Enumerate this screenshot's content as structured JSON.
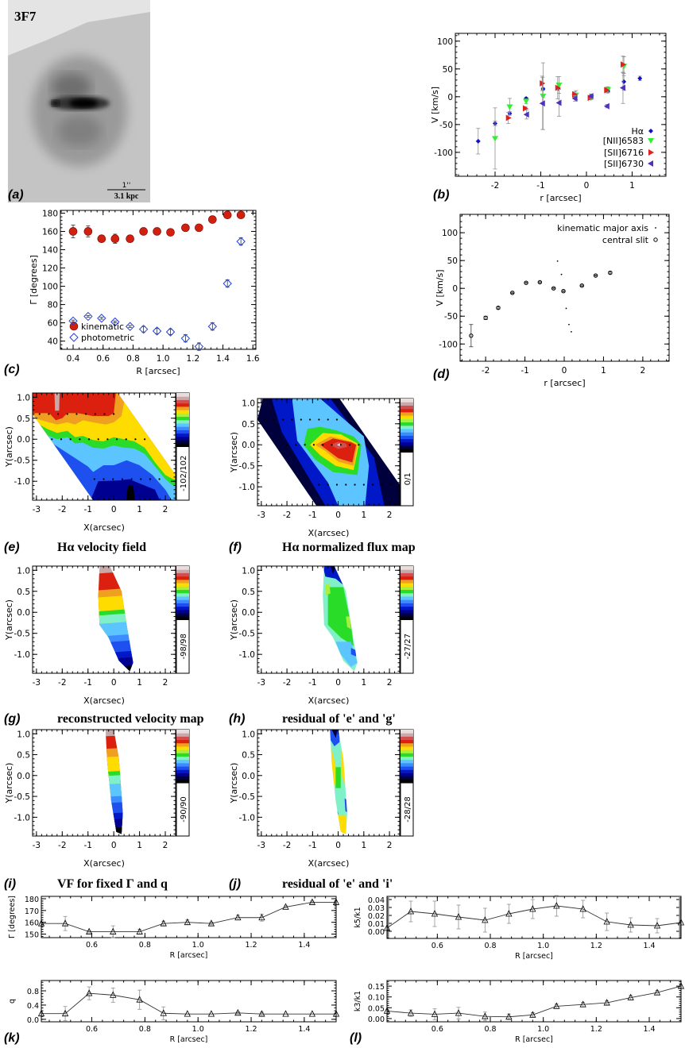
{
  "panel_letters": {
    "a": "(a)",
    "b": "(b)",
    "c": "(c)",
    "d": "(d)",
    "e": "(e)",
    "f": "(f)",
    "g": "(g)",
    "h": "(h)",
    "i": "(i)",
    "j": "(j)",
    "k": "(k)",
    "l": "(l)"
  },
  "panel_a": {
    "object_id": "3F7",
    "scale_top": "1''",
    "scale_bottom": "3.1 kpc"
  },
  "captions": {
    "e": "Hα velocity field",
    "f": "Hα normalized flux map",
    "g": "reconstructed velocity map",
    "h": "residual of 'e' and 'g'",
    "i": "VF for fixed Γ and q",
    "j": "residual of 'e' and 'i'"
  },
  "colormap": [
    "#000000",
    "#00003c",
    "#000090",
    "#0018c8",
    "#1e50f0",
    "#3c8cff",
    "#5cc4ff",
    "#80f0c8",
    "#28dc28",
    "#a8f040",
    "#ffdc00",
    "#f0a020",
    "#dc2010",
    "#d05050",
    "#c8a8a8",
    "#e8dcdc"
  ],
  "chart_data": [
    {
      "panel": "b",
      "type": "scatter",
      "xlabel": "r [arcsec]",
      "ylabel": "V [km/s]",
      "xlim": [
        -2.87,
        1.74
      ],
      "ylim": [
        -143,
        114
      ],
      "xticks": [
        "-2",
        "-1",
        "0",
        "1"
      ],
      "yticks": [
        "100",
        "50",
        "0",
        "-50",
        "-100"
      ],
      "legend": "bottom-right",
      "series": [
        {
          "name": "Hα",
          "marker": "diamond",
          "color": "#1010c8",
          "points": [
            [
              -2.37,
              -80,
              23
            ],
            [
              -2.0,
              -48,
              4
            ],
            [
              -1.68,
              -30,
              3
            ],
            [
              -1.32,
              -3,
              2
            ],
            [
              -0.95,
              14,
              2
            ],
            [
              -0.62,
              15,
              2
            ],
            [
              -0.27,
              4,
              2
            ],
            [
              0.1,
              1,
              3
            ],
            [
              0.47,
              10,
              3
            ],
            [
              0.82,
              27,
              15
            ],
            [
              1.17,
              33,
              4
            ]
          ]
        },
        {
          "name": "[NII]6583",
          "marker": "triangle-down",
          "color": "#30f030",
          "points": [
            [
              -2.0,
              -75,
              55
            ],
            [
              -1.68,
              -18,
              15
            ],
            [
              -1.32,
              -8,
              4
            ],
            [
              -0.95,
              1,
              60
            ],
            [
              -0.6,
              21,
              15
            ],
            [
              -0.23,
              3,
              8
            ],
            [
              0.1,
              -2,
              3
            ],
            [
              0.47,
              13,
              5
            ],
            [
              0.82,
              55,
              17
            ]
          ]
        },
        {
          "name": "[SII]6716",
          "marker": "triangle-right",
          "color": "#e02020",
          "points": [
            [
              -1.71,
              -38,
              10
            ],
            [
              -1.34,
              -21,
              3
            ],
            [
              -0.97,
              24,
              13
            ],
            [
              -0.63,
              16,
              20
            ],
            [
              -0.26,
              4,
              5
            ],
            [
              0.08,
              -2,
              3
            ],
            [
              0.44,
              12,
              5
            ],
            [
              0.8,
              58,
              15
            ]
          ]
        },
        {
          "name": "[SII]6730",
          "marker": "triangle-left",
          "color": "#5030c0",
          "points": [
            [
              -1.31,
              -32,
              8
            ],
            [
              -0.96,
              -12,
              47
            ],
            [
              -0.6,
              -11,
              24
            ],
            [
              -0.25,
              -3,
              5
            ],
            [
              0.1,
              1,
              4
            ],
            [
              0.45,
              -17,
              3
            ],
            [
              0.8,
              16,
              28
            ]
          ]
        }
      ]
    },
    {
      "panel": "c",
      "type": "scatter",
      "xlabel": "R [arcsec]",
      "ylabel": "Γ [degrees]",
      "xlim": [
        0.315,
        1.62
      ],
      "ylim": [
        31,
        183
      ],
      "xticks": [
        "0.4",
        "0.6",
        "0.8",
        "1.0",
        "1.2",
        "1.4",
        "1.6"
      ],
      "yticks": [
        "180",
        "160",
        "140",
        "120",
        "100",
        "80",
        "60",
        "40"
      ],
      "legend": "bottom-left",
      "series": [
        {
          "name": "kinematic",
          "marker": "circle",
          "color": "#d02010",
          "points": [
            [
              0.4,
              160,
              7
            ],
            [
              0.5,
              160,
              6
            ],
            [
              0.59,
              152,
              1
            ],
            [
              0.68,
              152,
              5
            ],
            [
              0.78,
              152,
              2
            ],
            [
              0.87,
              160,
              2
            ],
            [
              0.96,
              160,
              2
            ],
            [
              1.05,
              159,
              1
            ],
            [
              1.15,
              164,
              2
            ],
            [
              1.24,
              164,
              3
            ],
            [
              1.33,
              173,
              2
            ],
            [
              1.43,
              178,
              1
            ],
            [
              1.52,
              178,
              1
            ]
          ]
        },
        {
          "name": "photometric",
          "marker": "open-diamond",
          "color": "#2040e0",
          "points": [
            [
              0.4,
              62,
              1
            ],
            [
              0.5,
              67,
              1
            ],
            [
              0.59,
              65,
              1
            ],
            [
              0.68,
              61,
              1
            ],
            [
              0.78,
              56,
              1
            ],
            [
              0.87,
              53,
              3
            ],
            [
              0.96,
              51,
              3
            ],
            [
              1.05,
              50,
              3
            ],
            [
              1.15,
              43,
              4
            ],
            [
              1.24,
              34,
              4
            ],
            [
              1.33,
              56,
              4
            ],
            [
              1.43,
              103,
              4
            ],
            [
              1.52,
              149,
              4
            ]
          ]
        }
      ]
    },
    {
      "panel": "d",
      "type": "scatter",
      "xlabel": "r [arcsec]",
      "ylabel": "V [km/s]",
      "xlim": [
        -2.65,
        2.67
      ],
      "ylim": [
        -131,
        133
      ],
      "xticks": [
        "-2",
        "-1",
        "0",
        "1",
        "2"
      ],
      "yticks": [
        "100",
        "50",
        "0",
        "-50",
        "-100"
      ],
      "legend": "top-right",
      "series": [
        {
          "name": "kinematic major axis",
          "marker": "dot",
          "color": "#000000",
          "points": [
            [
              -0.17,
              49,
              0
            ],
            [
              -0.07,
              25,
              0
            ],
            [
              0.05,
              -36,
              0
            ],
            [
              0.12,
              -65,
              0
            ],
            [
              0.18,
              -78,
              0
            ]
          ]
        },
        {
          "name": "central slit",
          "marker": "open-circle",
          "color": "#000000",
          "points": [
            [
              -2.37,
              -85,
              20
            ],
            [
              -2.0,
              -53,
              3
            ],
            [
              -1.68,
              -35,
              2
            ],
            [
              -1.32,
              -8,
              1
            ],
            [
              -0.97,
              10,
              1
            ],
            [
              -0.62,
              11,
              1
            ],
            [
              -0.27,
              0,
              1
            ],
            [
              -0.02,
              -5,
              1
            ],
            [
              0.45,
              5,
              1
            ],
            [
              0.8,
              23,
              1
            ],
            [
              1.17,
              28,
              2
            ]
          ]
        }
      ]
    },
    {
      "panel": "e",
      "type": "heatmap",
      "xlabel": "X(arcsec)",
      "ylabel": "Y(arcsec)",
      "xlim": [
        -3.15,
        2.4
      ],
      "ylim": [
        -1.45,
        1.1
      ],
      "xticks": [
        "-3",
        "-2",
        "-1",
        "0",
        "1",
        "2"
      ],
      "yticks": [
        "1.0",
        "0.5",
        "0.0",
        "-0.5",
        "-1.0"
      ],
      "colorbar_label": "-102/102"
    },
    {
      "panel": "f",
      "type": "heatmap",
      "xlabel": "X(arcsec)",
      "ylabel": "Y(arcsec)",
      "xlim": [
        -3.15,
        2.4
      ],
      "ylim": [
        -1.45,
        1.1
      ],
      "xticks": [
        "-3",
        "-2",
        "-1",
        "0",
        "1",
        "2"
      ],
      "yticks": [
        "1.0",
        "0.5",
        "0.0",
        "-0.5",
        "-1.0"
      ],
      "colorbar_label": "0/1"
    },
    {
      "panel": "g",
      "type": "heatmap",
      "xlabel": "X(arcsec)",
      "ylabel": "Y(arcsec)",
      "xlim": [
        -3.15,
        2.4
      ],
      "ylim": [
        -1.45,
        1.1
      ],
      "xticks": [
        "-3",
        "-2",
        "-1",
        "0",
        "1",
        "2"
      ],
      "yticks": [
        "1.0",
        "0.5",
        "0.0",
        "-0.5",
        "-1.0"
      ],
      "colorbar_label": "-98/98"
    },
    {
      "panel": "h",
      "type": "heatmap",
      "xlabel": "X(arcsec)",
      "ylabel": "Y(arcsec)",
      "xlim": [
        -3.15,
        2.4
      ],
      "ylim": [
        -1.45,
        1.1
      ],
      "xticks": [
        "-3",
        "-2",
        "-1",
        "0",
        "1",
        "2"
      ],
      "yticks": [
        "1.0",
        "0.5",
        "0.0",
        "-0.5",
        "-1.0"
      ],
      "colorbar_label": "-27/27"
    },
    {
      "panel": "i",
      "type": "heatmap",
      "xlabel": "X(arcsec)",
      "ylabel": "Y(arcsec)",
      "xlim": [
        -3.15,
        2.4
      ],
      "ylim": [
        -1.45,
        1.1
      ],
      "xticks": [
        "-3",
        "-2",
        "-1",
        "0",
        "1",
        "2"
      ],
      "yticks": [
        "1.0",
        "0.5",
        "0.0",
        "-0.5",
        "-1.0"
      ],
      "colorbar_label": "-90/90"
    },
    {
      "panel": "j",
      "type": "heatmap",
      "xlabel": "X(arcsec)",
      "ylabel": "Y(arcsec)",
      "xlim": [
        -3.15,
        2.4
      ],
      "ylim": [
        -1.45,
        1.1
      ],
      "xticks": [
        "-3",
        "-2",
        "-1",
        "0",
        "1",
        "2"
      ],
      "yticks": [
        "1.0",
        "0.5",
        "0.0",
        "-0.5",
        "-1.0"
      ],
      "colorbar_label": "-28/28"
    },
    {
      "panel": "k-top",
      "type": "line",
      "xlabel": "R [arcsec]",
      "ylabel": "Γ [degrees]",
      "xlim": [
        0.41,
        1.52
      ],
      "ylim": [
        147,
        182
      ],
      "xticks": [
        "0.6",
        "0.8",
        "1.0",
        "1.2",
        "1.4"
      ],
      "yticks": [
        "180",
        "170",
        "160",
        "150"
      ],
      "series": [
        {
          "marker": "open-triangle",
          "color": "#000000",
          "points": [
            [
              0.41,
              159,
              0
            ],
            [
              0.5,
              159,
              6
            ],
            [
              0.59,
              152,
              1
            ],
            [
              0.68,
              152,
              5
            ],
            [
              0.78,
              152,
              2
            ],
            [
              0.87,
              159,
              2
            ],
            [
              0.96,
              160,
              2
            ],
            [
              1.05,
              159,
              1
            ],
            [
              1.15,
              164,
              2
            ],
            [
              1.24,
              164,
              3
            ],
            [
              1.33,
              173,
              1
            ],
            [
              1.43,
              177,
              1
            ],
            [
              1.52,
              177,
              0
            ]
          ]
        }
      ]
    },
    {
      "panel": "k-bottom",
      "type": "line",
      "xlabel": "R [arcsec]",
      "ylabel": "q",
      "xlim": [
        0.41,
        1.52
      ],
      "ylim": [
        -0.07,
        1.09
      ],
      "xticks": [
        "0.6",
        "0.8",
        "1.0",
        "1.2",
        "1.4"
      ],
      "yticks": [
        "0.8",
        "0.4",
        "0.0"
      ],
      "series": [
        {
          "marker": "open-triangle",
          "color": "#000000",
          "points": [
            [
              0.41,
              0.16,
              0
            ],
            [
              0.5,
              0.16,
              0.2
            ],
            [
              0.59,
              0.73,
              0.18
            ],
            [
              0.68,
              0.68,
              0.2
            ],
            [
              0.78,
              0.55,
              0.27
            ],
            [
              0.87,
              0.17,
              0.18
            ],
            [
              0.96,
              0.15,
              0
            ],
            [
              1.05,
              0.15,
              0
            ],
            [
              1.15,
              0.18,
              0.03
            ],
            [
              1.24,
              0.15,
              0.05
            ],
            [
              1.33,
              0.15,
              0
            ],
            [
              1.43,
              0.15,
              0
            ],
            [
              1.52,
              0.15,
              0
            ]
          ]
        }
      ]
    },
    {
      "panel": "l-top",
      "type": "line",
      "xlabel": "R [arcsec]",
      "ylabel": "k5/k1",
      "xlim": [
        0.41,
        1.52
      ],
      "ylim": [
        -0.009,
        0.044
      ],
      "xticks": [
        "0.6",
        "0.8",
        "1.0",
        "1.2",
        "1.4"
      ],
      "yticks": [
        "0.04",
        "0.03",
        "0.02",
        "0.01",
        "0.00"
      ],
      "series": [
        {
          "marker": "open-triangle",
          "color": "#000000",
          "points": [
            [
              0.41,
              0.004,
              0
            ],
            [
              0.5,
              0.025,
              0.013
            ],
            [
              0.59,
              0.022,
              0.016
            ],
            [
              0.68,
              0.018,
              0.015
            ],
            [
              0.78,
              0.014,
              0.015
            ],
            [
              0.87,
              0.022,
              0.012
            ],
            [
              0.96,
              0.028,
              0.012
            ],
            [
              1.05,
              0.032,
              0.013
            ],
            [
              1.15,
              0.028,
              0.011
            ],
            [
              1.24,
              0.012,
              0.011
            ],
            [
              1.33,
              0.008,
              0.009
            ],
            [
              1.43,
              0.007,
              0.009
            ],
            [
              1.52,
              0.011,
              0
            ]
          ]
        }
      ]
    },
    {
      "panel": "l-bottom",
      "type": "line",
      "xlabel": "R [arcsec]",
      "ylabel": "k3/k1",
      "xlim": [
        0.41,
        1.52
      ],
      "ylim": [
        -0.015,
        0.176
      ],
      "xticks": [
        "0.6",
        "0.8",
        "1.0",
        "1.2",
        "1.4"
      ],
      "yticks": [
        "0.15",
        "0.10",
        "0.05",
        "0.00"
      ],
      "series": [
        {
          "marker": "open-triangle",
          "color": "#000000",
          "points": [
            [
              0.41,
              0.035,
              0
            ],
            [
              0.5,
              0.025,
              0.015
            ],
            [
              0.59,
              0.02,
              0.025
            ],
            [
              0.68,
              0.025,
              0.027
            ],
            [
              0.78,
              0.01,
              0.02
            ],
            [
              0.87,
              0.008,
              0.013
            ],
            [
              0.96,
              0.017,
              0.01
            ],
            [
              1.05,
              0.057,
              0.01
            ],
            [
              1.15,
              0.065,
              0.01
            ],
            [
              1.24,
              0.073,
              0.01
            ],
            [
              1.33,
              0.097,
              0.01
            ],
            [
              1.43,
              0.12,
              0.01
            ],
            [
              1.52,
              0.15,
              0
            ]
          ]
        }
      ]
    }
  ]
}
